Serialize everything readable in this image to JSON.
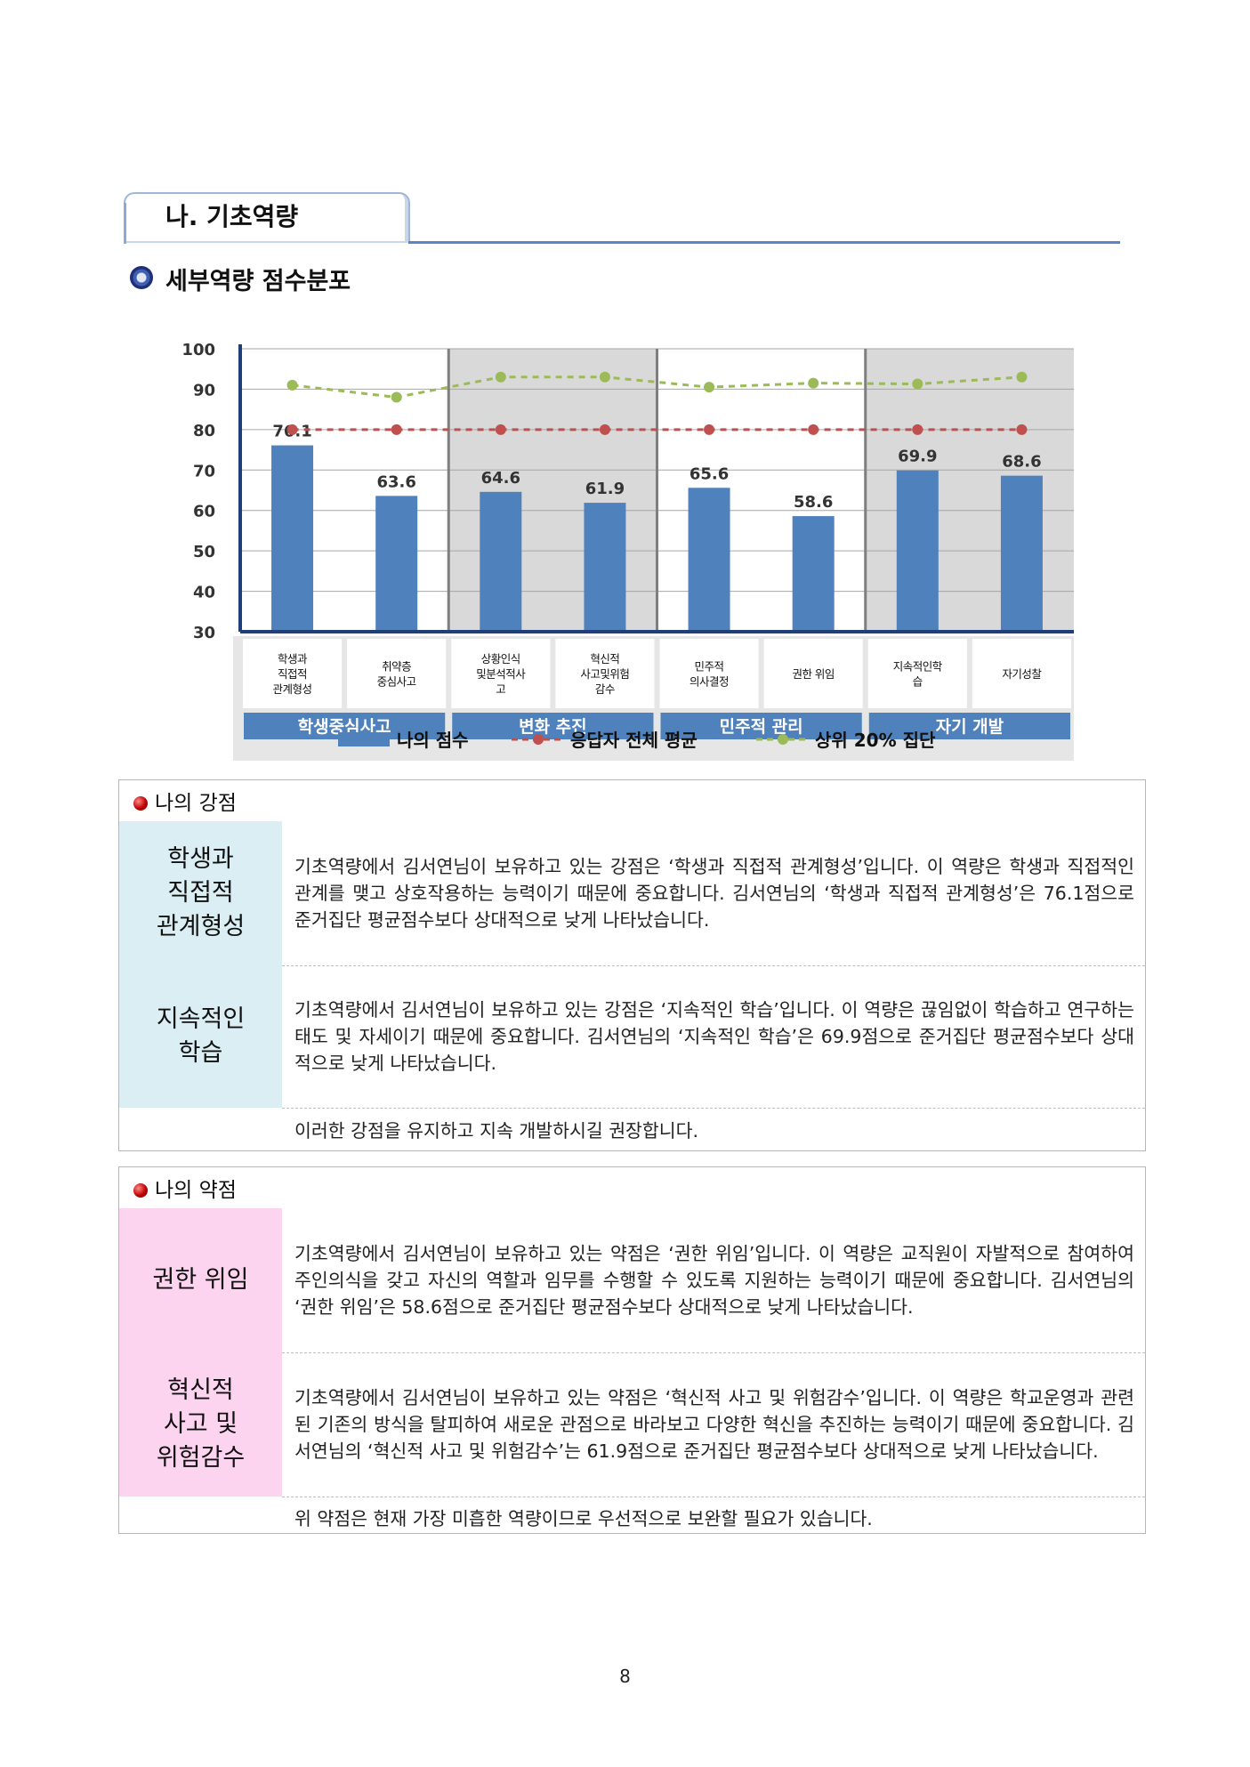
{
  "section": {
    "title": "나. 기초역량"
  },
  "subtitle": "세부역량 점수분포",
  "chart_data": {
    "type": "bar",
    "y_ticks": [
      "100",
      "90",
      "80",
      "70",
      "60",
      "50",
      "40",
      "30"
    ],
    "ylim": [
      30,
      100
    ],
    "grid": true,
    "categories": [
      [
        "학생과",
        "직접적",
        "관계형성"
      ],
      [
        "취약층",
        "중심사고"
      ],
      [
        "상황인식",
        "및분석적사",
        "고"
      ],
      [
        "혁신적",
        "사고및위험",
        "감수"
      ],
      [
        "민주적",
        "의사결정"
      ],
      [
        "권한 위임"
      ],
      [
        "지속적인학",
        "습"
      ],
      [
        "자기성찰"
      ]
    ],
    "groups": [
      "학생중심사고",
      "변화 추진",
      "민주적 관리",
      "자기 개발"
    ],
    "series": [
      {
        "name": "나의 점수",
        "kind": "bar",
        "color": "#4f81bd",
        "values": [
          76.1,
          63.6,
          64.6,
          61.9,
          65.6,
          58.6,
          69.9,
          68.6
        ]
      },
      {
        "name": "응답자 전체 평균",
        "kind": "line",
        "color": "#c0504d",
        "values": [
          80,
          80,
          80,
          80,
          80,
          80,
          80,
          80
        ]
      },
      {
        "name": "상위 20% 집단",
        "kind": "line",
        "color": "#9bbb59",
        "values": [
          91,
          88,
          93,
          93,
          90.5,
          91.5,
          91.3,
          93
        ]
      }
    ],
    "value_labels": [
      "76.1",
      "63.6",
      "64.6",
      "61.9",
      "65.6",
      "58.6",
      "69.9",
      "68.6"
    ],
    "legend": [
      "나의 점수",
      "응답자 전체 평균",
      "상위 20% 집단"
    ],
    "legend_position": "bottom",
    "shaded_groups": [
      1,
      3
    ]
  },
  "strength": {
    "header": "나의 강점",
    "bg": "#daeef3",
    "items": [
      {
        "label": "학생과\n직접적\n관계형성",
        "text": "기초역량에서 김서연님이 보유하고 있는 강점은 ‘학생과 직접적 관계형성’입니다. 이 역량은 학생과 직접적인 관계를 맺고 상호작용하는 능력이기 때문에 중요합니다. 김서연님의 ‘학생과 직접적 관계형성’은 76.1점으로 준거집단 평균점수보다 상대적으로 낮게 나타났습니다."
      },
      {
        "label": "지속적인\n학습",
        "text": "기초역량에서 김서연님이 보유하고 있는 강점은 ‘지속적인 학습’입니다. 이 역량은 끊임없이 학습하고 연구하는 태도 및 자세이기 때문에 중요합니다.  김서연님의 ‘지속적인 학습’은 69.9점으로 준거집단 평균점수보다 상대적으로 낮게 나타났습니다."
      }
    ],
    "note": "이러한 강점을 유지하고 지속 개발하시길 권장합니다."
  },
  "weakness": {
    "header": "나의 약점",
    "bg": "#fcd4ef",
    "items": [
      {
        "label": "권한 위임",
        "text": "기초역량에서 김서연님이 보유하고 있는 약점은 ‘권한 위임’입니다. 이 역량은 교직원이 자발적으로 참여하여 주인의식을 갖고 자신의 역할과 임무를 수행할 수 있도록 지원하는 능력이기 때문에 중요합니다. 김서연님의 ‘권한 위임’은 58.6점으로 준거집단 평균점수보다 상대적으로 낮게 나타났습니다."
      },
      {
        "label": "혁신적\n사고 및\n위험감수",
        "text": "기초역량에서 김서연님이 보유하고 있는 약점은 ‘혁신적 사고 및 위험감수’입니다. 이 역량은 학교운영과 관련된 기존의 방식을 탈피하여 새로운 관점으로 바라보고 다양한 혁신을 추진하는 능력이기 때문에 중요합니다. 김서연님의 ‘혁신적 사고 및 위험감수’는 61.9점으로 준거집단 평균점수보다 상대적으로 낮게 나타났습니다."
      }
    ],
    "note": "위 약점은 현재 가장 미흡한 역량이므로 우선적으로 보완할 필요가 있습니다."
  },
  "page_number": "8"
}
